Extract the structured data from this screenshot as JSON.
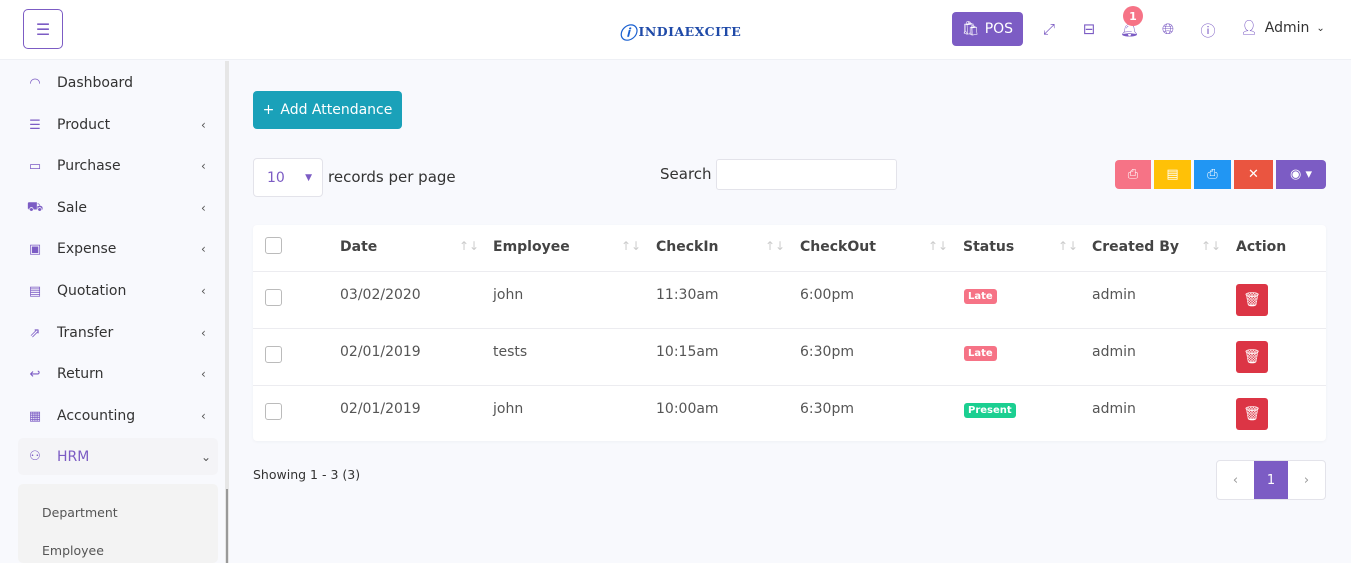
{
  "header": {
    "logo": "INDIAEXCITE",
    "pos_label": "POS",
    "notification_count": "1",
    "user": "Admin",
    "icons": [
      "menu-icon",
      "fullscreen-icon",
      "basket-icon",
      "bell-icon",
      "globe-icon",
      "info-icon",
      "user-icon"
    ]
  },
  "sidebar": {
    "items": [
      {
        "label": "Dashboard",
        "icon": "dashboard-icon",
        "glyph": "◠",
        "chevron": ""
      },
      {
        "label": "Product",
        "icon": "list-icon",
        "glyph": "☰",
        "chevron": "‹"
      },
      {
        "label": "Purchase",
        "icon": "credit-card-icon",
        "glyph": "▭",
        "chevron": "‹"
      },
      {
        "label": "Sale",
        "icon": "cart-icon",
        "glyph": "⛟",
        "chevron": "‹"
      },
      {
        "label": "Expense",
        "icon": "wallet-icon",
        "glyph": "▣",
        "chevron": "‹"
      },
      {
        "label": "Quotation",
        "icon": "document-icon",
        "glyph": "▤",
        "chevron": "‹"
      },
      {
        "label": "Transfer",
        "icon": "share-icon",
        "glyph": "⇗",
        "chevron": "‹"
      },
      {
        "label": "Return",
        "icon": "return-icon",
        "glyph": "↩",
        "chevron": "‹"
      },
      {
        "label": "Accounting",
        "icon": "briefcase-icon",
        "glyph": "▦",
        "chevron": "‹"
      },
      {
        "label": "HRM",
        "icon": "users-icon",
        "glyph": "⚇",
        "chevron": "⌄"
      }
    ],
    "submenu": [
      "Department",
      "Employee"
    ]
  },
  "main": {
    "add_label": "Add Attendance",
    "per_page": "10",
    "per_page_label": "records per page",
    "search_label": "Search",
    "search_value": "",
    "toolbar": [
      {
        "name": "pdf-export-button",
        "glyph": "⎙",
        "color": "#f67386"
      },
      {
        "name": "excel-export-button",
        "glyph": "▤",
        "color": "#ffc107"
      },
      {
        "name": "print-button",
        "glyph": "⎙",
        "color": "#2196f3"
      },
      {
        "name": "clear-button",
        "glyph": "✕",
        "color": "#ea5540"
      },
      {
        "name": "column-visibility-button",
        "glyph": "◉ ▾",
        "color": "#7c5cc4"
      }
    ],
    "columns": [
      "Date",
      "Employee",
      "CheckIn",
      "CheckOut",
      "Status",
      "Created By",
      "Action"
    ],
    "rows": [
      {
        "date": "03/02/2020",
        "employee": "john",
        "checkin": "11:30am",
        "checkout": "6:00pm",
        "status": "Late",
        "created_by": "admin"
      },
      {
        "date": "02/01/2019",
        "employee": "tests",
        "checkin": "10:15am",
        "checkout": "6:30pm",
        "status": "Late",
        "created_by": "admin"
      },
      {
        "date": "02/01/2019",
        "employee": "john",
        "checkin": "10:00am",
        "checkout": "6:30pm",
        "status": "Present",
        "created_by": "admin"
      }
    ],
    "status_colors": {
      "Late": "#f67386",
      "Present": "#1bcf91"
    },
    "showing": "Showing 1 - 3 (3)",
    "pagination": {
      "prev": "‹",
      "current": "1",
      "next": "›"
    }
  }
}
